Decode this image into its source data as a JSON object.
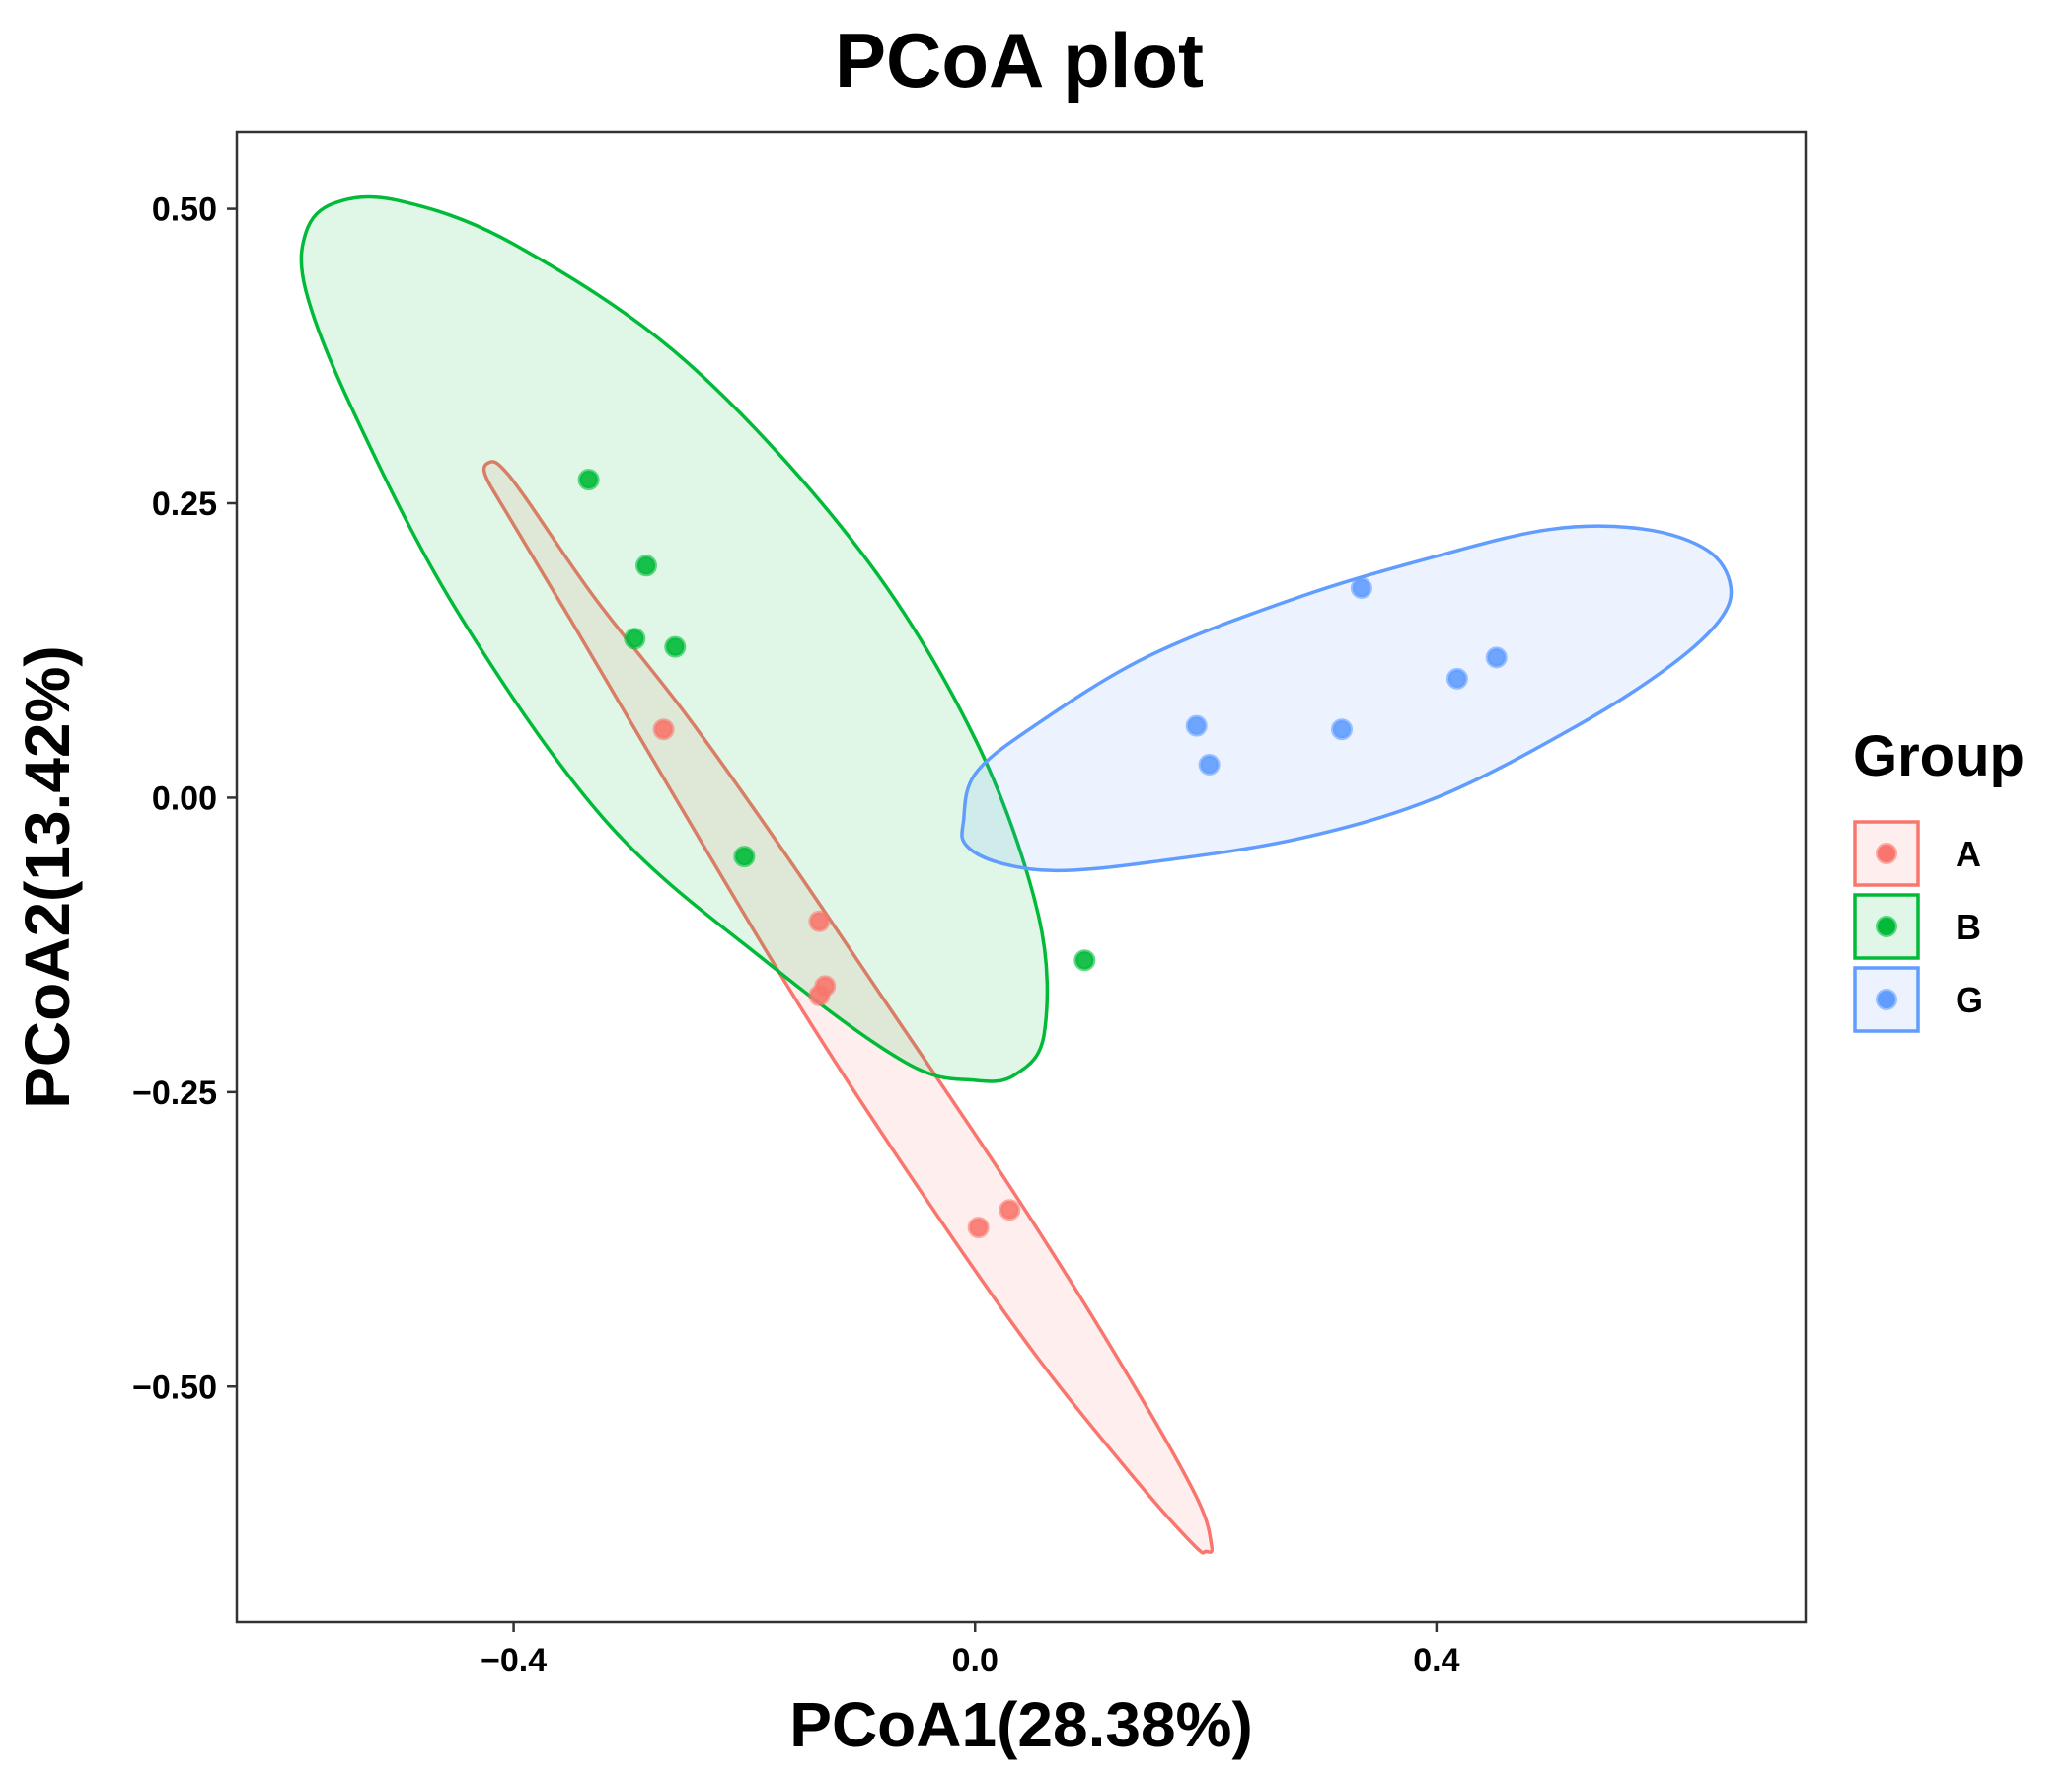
{
  "chart_data": {
    "type": "scatter",
    "title": "PCoA plot",
    "xlabel": "PCoA1(28.38%)",
    "ylabel": "PCoA2(13.42%)",
    "xlim": [
      -0.64,
      0.72
    ],
    "ylim": [
      -0.7,
      0.565
    ],
    "x_ticks": [
      -0.4,
      0.0,
      0.4
    ],
    "x_tick_labels": [
      "−0.4",
      "0.0",
      "0.4"
    ],
    "y_ticks": [
      0.5,
      0.25,
      0.0,
      -0.25,
      -0.5
    ],
    "y_tick_labels": [
      "0.50",
      "0.25",
      "0.00",
      "−0.25",
      "−0.50"
    ],
    "grid": false,
    "legend": {
      "title": "Group",
      "position": "right"
    },
    "series": [
      {
        "name": "A",
        "color": "#F8766D",
        "points": [
          [
            -0.27,
            0.058
          ],
          [
            -0.135,
            -0.105
          ],
          [
            -0.13,
            -0.16
          ],
          [
            -0.135,
            -0.168
          ],
          [
            0.003,
            -0.365
          ],
          [
            0.03,
            -0.35
          ]
        ],
        "ellipse": [
          [
            -0.42,
            0.285
          ],
          [
            -0.41,
            0.28
          ],
          [
            -0.39,
            0.255
          ],
          [
            -0.33,
            0.17
          ],
          [
            -0.25,
            0.07
          ],
          [
            -0.17,
            -0.04
          ],
          [
            -0.08,
            -0.17
          ],
          [
            0.03,
            -0.33
          ],
          [
            0.12,
            -0.47
          ],
          [
            0.19,
            -0.59
          ],
          [
            0.205,
            -0.635
          ],
          [
            0.2,
            -0.64
          ],
          [
            0.19,
            -0.635
          ],
          [
            0.14,
            -0.58
          ],
          [
            0.05,
            -0.47
          ],
          [
            -0.05,
            -0.33
          ],
          [
            -0.15,
            -0.18
          ],
          [
            -0.26,
            0.0
          ],
          [
            -0.35,
            0.15
          ],
          [
            -0.405,
            0.24
          ],
          [
            -0.425,
            0.275
          ]
        ]
      },
      {
        "name": "B",
        "color": "#00BA38",
        "points": [
          [
            -0.335,
            0.27
          ],
          [
            -0.285,
            0.197
          ],
          [
            -0.295,
            0.135
          ],
          [
            -0.26,
            0.128
          ],
          [
            -0.2,
            -0.05
          ],
          [
            0.095,
            -0.138
          ]
        ],
        "ellipse": [
          [
            -0.58,
            0.48
          ],
          [
            -0.555,
            0.505
          ],
          [
            -0.5,
            0.507
          ],
          [
            -0.4,
            0.47
          ],
          [
            -0.25,
            0.37
          ],
          [
            -0.1,
            0.21
          ],
          [
            0.0,
            0.05
          ],
          [
            0.055,
            -0.1
          ],
          [
            0.06,
            -0.2
          ],
          [
            0.035,
            -0.235
          ],
          [
            0.0,
            -0.24
          ],
          [
            -0.06,
            -0.225
          ],
          [
            -0.18,
            -0.14
          ],
          [
            -0.32,
            -0.02
          ],
          [
            -0.45,
            0.16
          ],
          [
            -0.54,
            0.33
          ],
          [
            -0.58,
            0.43
          ]
        ]
      },
      {
        "name": "G",
        "color": "#619CFF",
        "points": [
          [
            0.192,
            0.061
          ],
          [
            0.203,
            0.028
          ],
          [
            0.318,
            0.058
          ],
          [
            0.335,
            0.178
          ],
          [
            0.418,
            0.101
          ],
          [
            0.452,
            0.119
          ]
        ],
        "ellipse": [
          [
            -0.01,
            -0.02
          ],
          [
            0.0,
            0.02
          ],
          [
            0.05,
            0.06
          ],
          [
            0.15,
            0.12
          ],
          [
            0.28,
            0.17
          ],
          [
            0.4,
            0.205
          ],
          [
            0.5,
            0.228
          ],
          [
            0.58,
            0.228
          ],
          [
            0.635,
            0.21
          ],
          [
            0.655,
            0.18
          ],
          [
            0.645,
            0.15
          ],
          [
            0.6,
            0.11
          ],
          [
            0.52,
            0.06
          ],
          [
            0.4,
            0.0
          ],
          [
            0.28,
            -0.035
          ],
          [
            0.15,
            -0.055
          ],
          [
            0.07,
            -0.062
          ],
          [
            0.02,
            -0.055
          ],
          [
            -0.008,
            -0.04
          ]
        ]
      }
    ]
  }
}
